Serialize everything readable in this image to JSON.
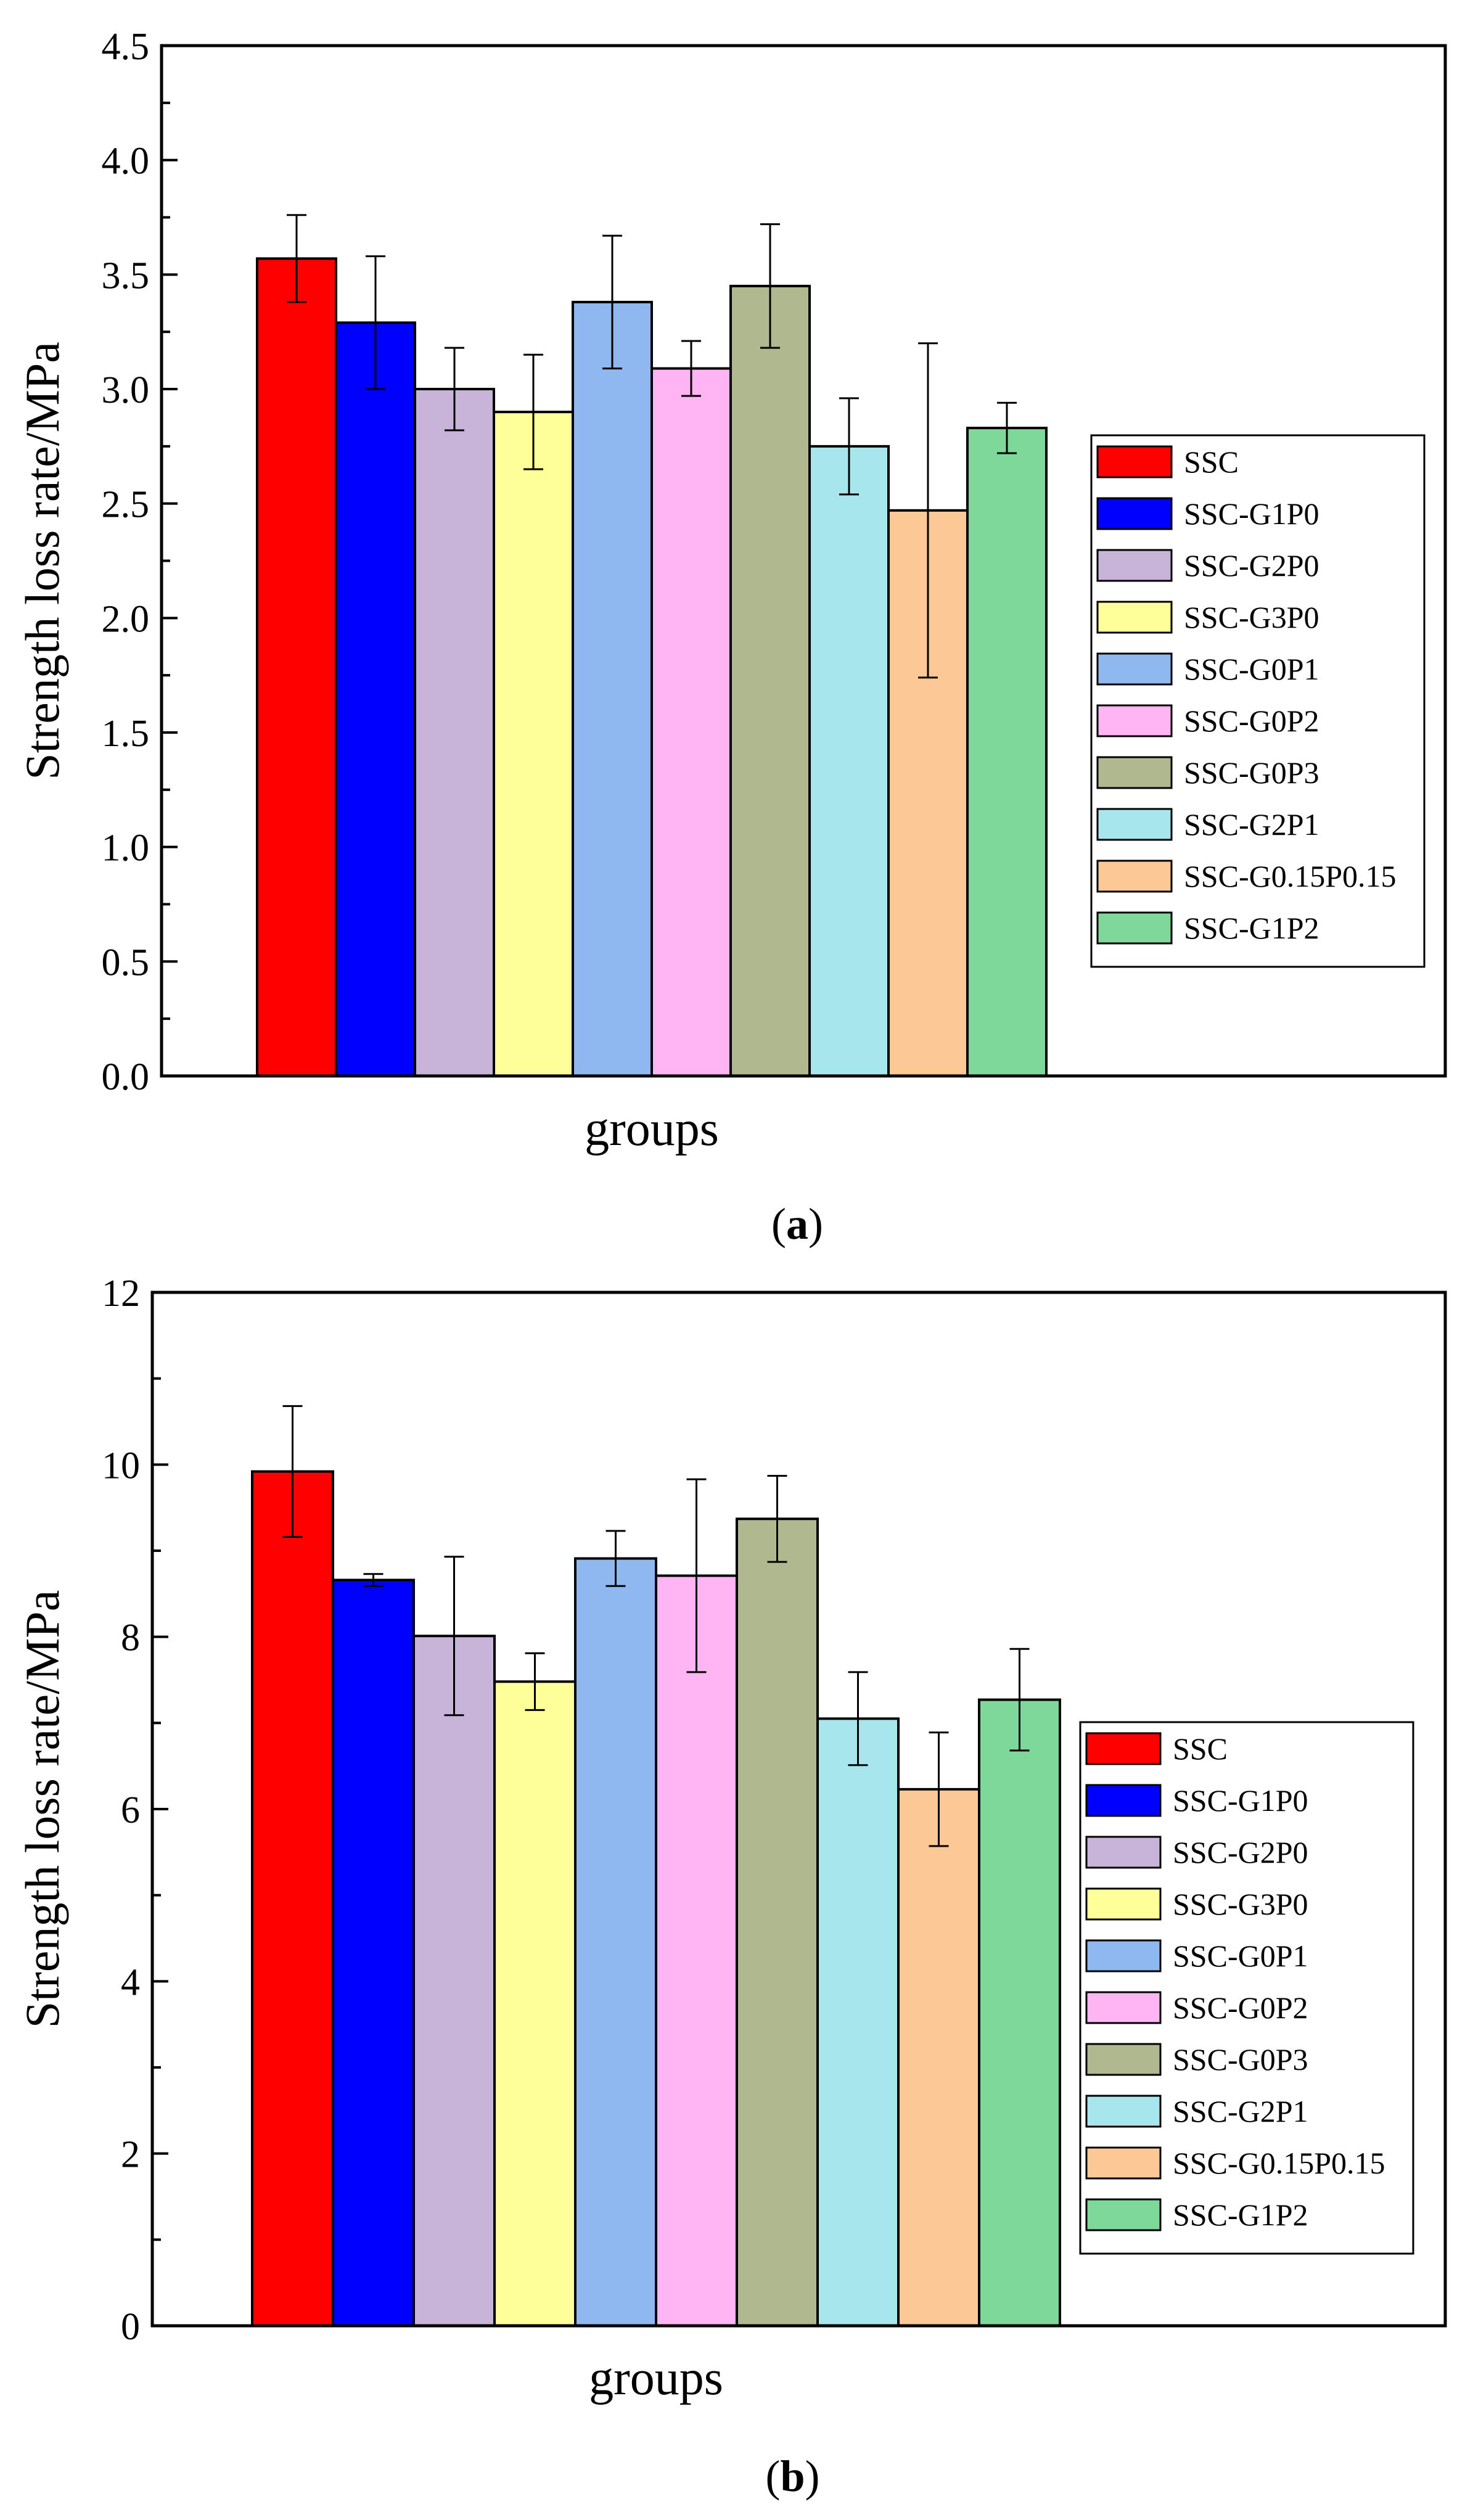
{
  "colors": {
    "SSC": "#ff0000",
    "SSC-G1P0": "#0000ff",
    "SSC-G2P0": "#c8b4d8",
    "SSC-G3P0": "#ffff99",
    "SSC-G0P1": "#8fb8f0",
    "SSC-G0P2": "#ffb4f4",
    "SSC-G0P3": "#b0b890",
    "SSC-G2P1": "#a8e6ee",
    "SSC-G0.15P0.15": "#fcc896",
    "SSC-G1P2": "#7ed89a"
  },
  "chart_data": [
    {
      "type": "bar",
      "panel_label": "(a)",
      "xlabel": "groups",
      "ylabel": "Strength loss rate/MPa",
      "ylim": [
        0,
        4.5
      ],
      "yticks": [
        "0.0",
        "0.5",
        "1.0",
        "1.5",
        "2.0",
        "2.5",
        "3.0",
        "3.5",
        "4.0",
        "4.5"
      ],
      "legend_position": "right",
      "series": [
        {
          "name": "SSC",
          "value": 3.57,
          "error": 0.19
        },
        {
          "name": "SSC-G1P0",
          "value": 3.29,
          "error": 0.29
        },
        {
          "name": "SSC-G2P0",
          "value": 3.0,
          "error": 0.18
        },
        {
          "name": "SSC-G3P0",
          "value": 2.9,
          "error": 0.25
        },
        {
          "name": "SSC-G0P1",
          "value": 3.38,
          "error": 0.29
        },
        {
          "name": "SSC-G0P2",
          "value": 3.09,
          "error": 0.12
        },
        {
          "name": "SSC-G0P3",
          "value": 3.45,
          "error": 0.27
        },
        {
          "name": "SSC-G2P1",
          "value": 2.75,
          "error": 0.21
        },
        {
          "name": "SSC-G0.15P0.15",
          "value": 2.47,
          "error": 0.73
        },
        {
          "name": "SSC-G1P2",
          "value": 2.83,
          "error": 0.11
        }
      ]
    },
    {
      "type": "bar",
      "panel_label": "(b)",
      "xlabel": "groups",
      "ylabel": "Strength loss rate/MPa",
      "ylim": [
        0,
        12
      ],
      "yticks": [
        "0",
        "2",
        "4",
        "6",
        "8",
        "10",
        "12"
      ],
      "legend_position": "right",
      "series": [
        {
          "name": "SSC",
          "value": 9.92,
          "error": 0.76
        },
        {
          "name": "SSC-G1P0",
          "value": 8.66,
          "error": 0.07
        },
        {
          "name": "SSC-G2P0",
          "value": 8.01,
          "error": 0.92
        },
        {
          "name": "SSC-G3P0",
          "value": 7.48,
          "error": 0.33
        },
        {
          "name": "SSC-G0P1",
          "value": 8.91,
          "error": 0.32
        },
        {
          "name": "SSC-G0P2",
          "value": 8.71,
          "error": 1.12
        },
        {
          "name": "SSC-G0P3",
          "value": 9.37,
          "error": 0.5
        },
        {
          "name": "SSC-G2P1",
          "value": 7.05,
          "error": 0.54
        },
        {
          "name": "SSC-G0.15P0.15",
          "value": 6.23,
          "error": 0.66
        },
        {
          "name": "SSC-G1P2",
          "value": 7.27,
          "error": 0.59
        }
      ]
    }
  ]
}
